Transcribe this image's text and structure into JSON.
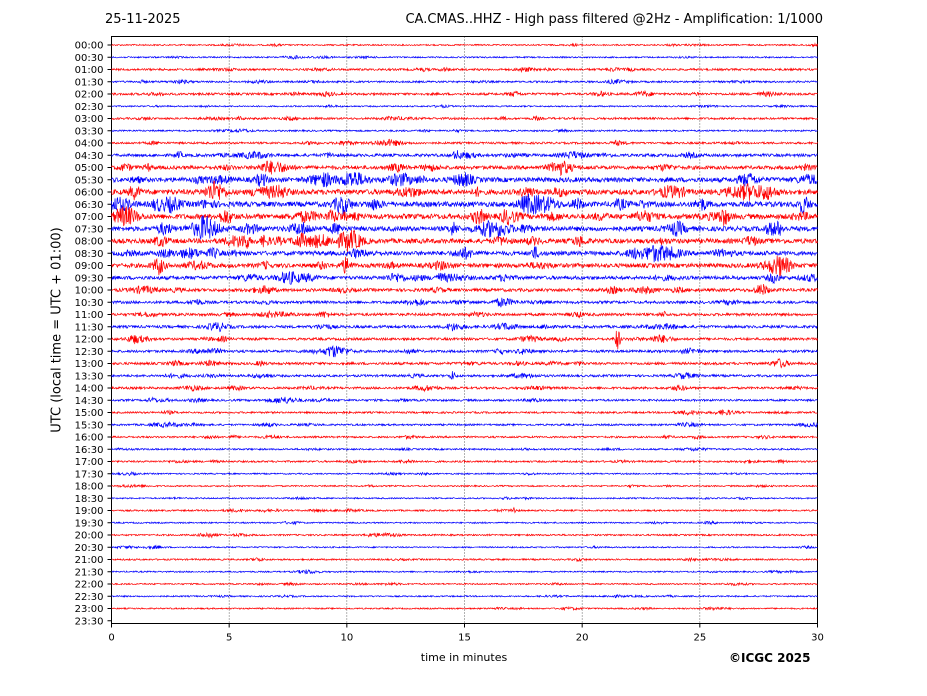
{
  "header": {
    "date": "25-11-2025",
    "title": "CA.CMAS..HHZ - High pass filtered @2Hz - Amplification: 1/1000"
  },
  "footer": {
    "copyright": "©ICGC 2025"
  },
  "chart_data": {
    "type": "line",
    "title": "CA.CMAS..HHZ - High pass filtered @2Hz - Amplification: 1/1000",
    "xlabel": "time in minutes",
    "ylabel": "UTC (local time = UTC + 01:00)",
    "xlim": [
      0,
      30
    ],
    "x_ticks": [
      0,
      5,
      10,
      15,
      20,
      25,
      30
    ],
    "vertical_grid_minutes": [
      5,
      10,
      15,
      20,
      25
    ],
    "grid": "vertical dotted lines",
    "trace_colors": [
      "#ff0000",
      "#0000ff"
    ],
    "rows": [
      "00:00",
      "00:30",
      "01:00",
      "01:30",
      "02:00",
      "02:30",
      "03:00",
      "03:30",
      "04:00",
      "04:30",
      "05:00",
      "05:30",
      "06:00",
      "06:30",
      "07:00",
      "07:30",
      "08:00",
      "08:30",
      "09:00",
      "09:30",
      "10:00",
      "10:30",
      "11:00",
      "11:30",
      "12:00",
      "12:30",
      "13:00",
      "13:30",
      "14:00",
      "14:30",
      "15:00",
      "15:30",
      "16:00",
      "16:30",
      "17:00",
      "17:30",
      "18:00",
      "18:30",
      "19:00",
      "19:30",
      "20:00",
      "20:30",
      "21:00",
      "21:30",
      "22:00",
      "22:30",
      "23:00",
      "23:30"
    ],
    "noise_level": [
      0.3,
      0.3,
      0.6,
      0.5,
      0.7,
      0.3,
      0.6,
      0.4,
      0.6,
      1.0,
      1.3,
      1.8,
      2.0,
      2.0,
      2.0,
      1.8,
      1.8,
      1.6,
      1.6,
      1.3,
      1.1,
      0.9,
      0.9,
      0.9,
      0.8,
      0.8,
      0.8,
      0.7,
      0.7,
      0.6,
      0.5,
      0.5,
      0.5,
      0.4,
      0.5,
      0.3,
      0.3,
      0.3,
      0.4,
      0.3,
      0.4,
      0.3,
      0.4,
      0.3,
      0.3,
      0.3,
      0.3,
      0.0
    ],
    "events": [
      {
        "row": "08:00",
        "minute": 5.7,
        "amplitude": 6
      },
      {
        "row": "12:00",
        "minute": 21.5,
        "amplitude": 10
      },
      {
        "row": "12:30",
        "minute": 16.5,
        "amplitude": 4
      },
      {
        "row": "13:30",
        "minute": 14.5,
        "amplitude": 4
      },
      {
        "row": "19:00",
        "minute": 17.1,
        "amplitude": 3
      }
    ]
  }
}
